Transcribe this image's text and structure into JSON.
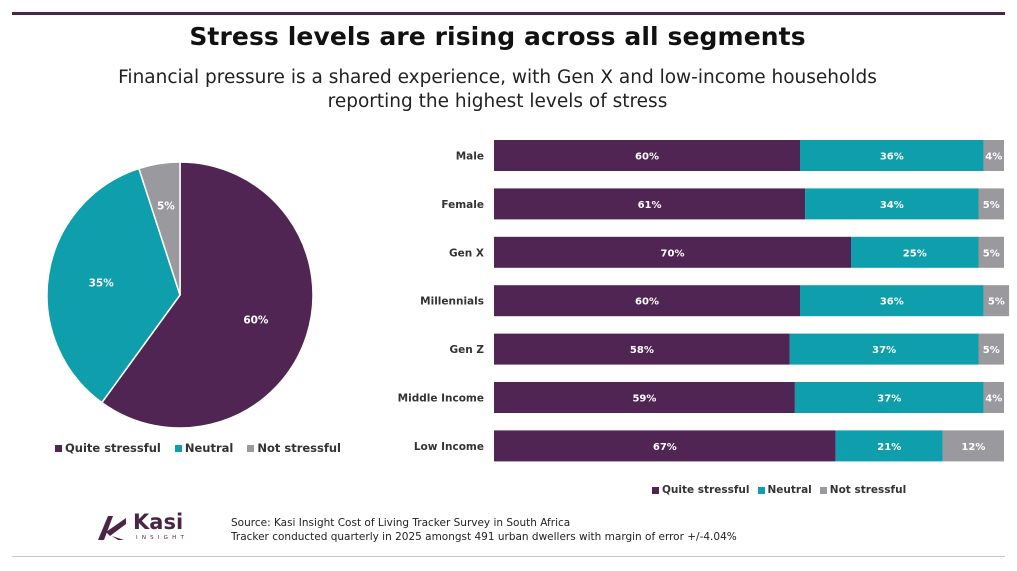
{
  "title": "Stress levels are rising across all segments",
  "subtitle_line1": "Financial pressure is a shared experience, with Gen X and low-income households",
  "subtitle_line2": "reporting the highest levels of stress",
  "colors": {
    "quite": "#512553",
    "neutral": "#0e9eac",
    "not": "#9a999d",
    "brand": "#4b2546"
  },
  "chart_data": [
    {
      "type": "pie",
      "title": "",
      "categories": [
        "Quite stressful",
        "Neutral",
        "Not stressful"
      ],
      "values": [
        60,
        35,
        5
      ],
      "labels": [
        "60%",
        "35%",
        "5%"
      ],
      "legend": [
        "Quite stressful",
        "Neutral",
        "Not stressful"
      ],
      "legend_position": "bottom"
    },
    {
      "type": "bar",
      "orientation": "horizontal",
      "stacked": true,
      "categories": [
        "Male",
        "Female",
        "Gen X",
        "Millennials",
        "Gen Z",
        "Middle Income",
        "Low Income"
      ],
      "series": [
        {
          "name": "Quite stressful",
          "values": [
            60,
            61,
            70,
            60,
            58,
            59,
            67
          ],
          "labels": [
            "60%",
            "61%",
            "70%",
            "60%",
            "58%",
            "59%",
            "67%"
          ]
        },
        {
          "name": "Neutral",
          "values": [
            36,
            34,
            25,
            36,
            37,
            37,
            21
          ],
          "labels": [
            "36%",
            "34%",
            "25%",
            "36%",
            "37%",
            "37%",
            "21%"
          ]
        },
        {
          "name": "Not stressful",
          "values": [
            4,
            5,
            5,
            5,
            5,
            4,
            12
          ],
          "labels": [
            "4%",
            "5%",
            "5%",
            "5%",
            "5%",
            "4%",
            "12%"
          ]
        }
      ],
      "xlim": [
        0,
        100
      ],
      "legend": [
        "Quite stressful",
        "Neutral",
        "Not stressful"
      ],
      "legend_position": "bottom"
    }
  ],
  "brand": {
    "name": "Kasi",
    "sub": "INSIGHT"
  },
  "source_line1": "Source: Kasi Insight Cost of Living Tracker Survey in South Africa",
  "source_line2": "Tracker conducted quarterly in 2025 amongst 491 urban dwellers with margin of error +/-4.04%"
}
